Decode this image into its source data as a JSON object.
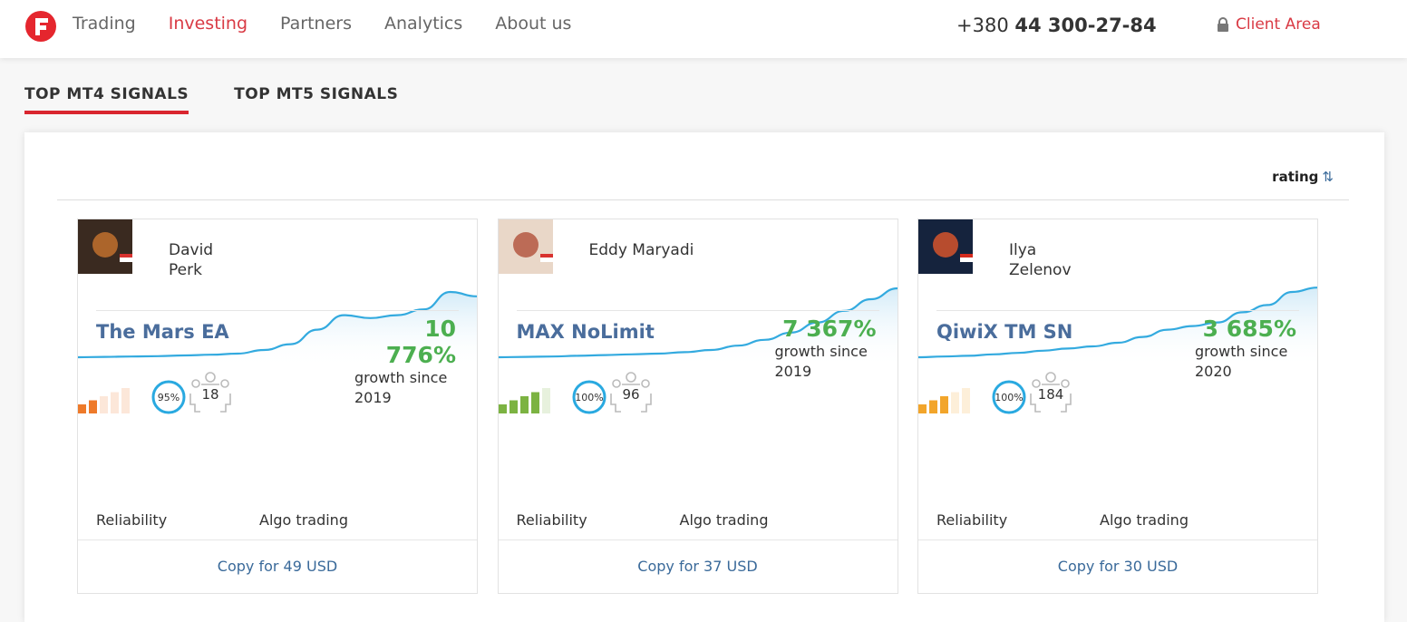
{
  "nav": {
    "items": [
      "Trading",
      "Investing",
      "Partners",
      "Analytics",
      "About us"
    ],
    "active": 1,
    "phone_prefix": "+380",
    "phone_number": "44 300-27-84",
    "client_area": "Client Area"
  },
  "tabs": [
    "TOP MT4 SIGNALS",
    "TOP MT5 SIGNALS"
  ],
  "sort": "rating",
  "cards": [
    {
      "name_lines": [
        "David",
        "Perk"
      ],
      "signal": "The Mars EA",
      "growth": "10 776%",
      "growth_caption": "growth since",
      "since": "2019",
      "reliability": 2,
      "reliability_color": "#ee7a2a",
      "reliability_label": "Reliability",
      "algo": "95%",
      "algo_label": "Algo trading",
      "subscribers": "18",
      "copy": "Copy for 49 USD",
      "curve": [
        0,
        0.5,
        1,
        1.5,
        2.5,
        3.5,
        5,
        10,
        18,
        38,
        58,
        54,
        58,
        66,
        90,
        84
      ]
    },
    {
      "name_lines": [
        "Eddy Maryadi"
      ],
      "signal": "MAX NoLimit",
      "growth": "7 367%",
      "growth_caption": "growth since",
      "since": "2019",
      "reliability": 4,
      "reliability_color": "#7cb342",
      "reliability_label": "Reliability",
      "algo": "100%",
      "algo_label": "Algo trading",
      "subscribers": "96",
      "copy": "Copy for 37 USD",
      "curve": [
        0,
        0.5,
        1,
        2,
        3,
        4,
        5,
        7,
        10,
        16,
        24,
        34,
        48,
        64,
        80,
        95
      ]
    },
    {
      "name_lines": [
        "Ilya",
        "Zelenov"
      ],
      "signal": "QiwiX TM SN",
      "growth": "3 685%",
      "growth_caption": "growth since",
      "since": "2020",
      "reliability": 3,
      "reliability_color": "#f2a52b",
      "reliability_label": "Reliability",
      "algo": "100%",
      "algo_label": "Algo trading",
      "subscribers": "184",
      "copy": "Copy for 30 USD",
      "curve": [
        0,
        1,
        2,
        4,
        6,
        9,
        12,
        15,
        20,
        28,
        38,
        43,
        48,
        62,
        72,
        90,
        96
      ]
    }
  ]
}
